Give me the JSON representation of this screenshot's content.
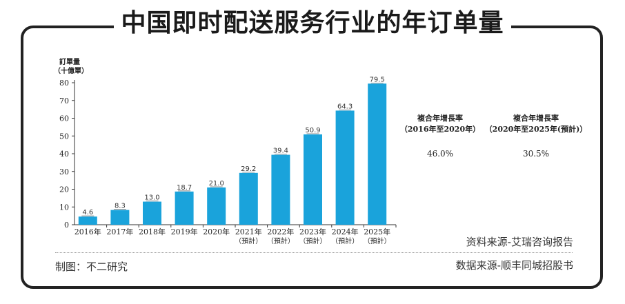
{
  "title": "中国即时配送服务行业的年订单量",
  "chart_data": {
    "type": "bar",
    "ylabel_line1": "訂單量",
    "ylabel_line2": "（十億單）",
    "ylim": [
      0,
      80
    ],
    "yticks": [
      0,
      10,
      20,
      30,
      40,
      50,
      60,
      70,
      80
    ],
    "categories": [
      {
        "year": "2016年",
        "note": ""
      },
      {
        "year": "2017年",
        "note": ""
      },
      {
        "year": "2018年",
        "note": ""
      },
      {
        "year": "2019年",
        "note": ""
      },
      {
        "year": "2020年",
        "note": ""
      },
      {
        "year": "2021年",
        "note": "（預計）"
      },
      {
        "year": "2022年",
        "note": "（預計）"
      },
      {
        "year": "2023年",
        "note": "（預計）"
      },
      {
        "year": "2024年",
        "note": "（預計）"
      },
      {
        "year": "2025年",
        "note": "（預計）"
      }
    ],
    "values": [
      4.6,
      8.3,
      13.0,
      18.7,
      21.0,
      29.2,
      39.4,
      50.9,
      64.3,
      79.5
    ],
    "value_labels": [
      "4.6",
      "8.3",
      "13.0",
      "18.7",
      "21.0",
      "29.2",
      "39.4",
      "50.9",
      "64.3",
      "79.5"
    ],
    "bar_color": "#1aa3db",
    "grid": false
  },
  "cagr": [
    {
      "title": "複合年增長率",
      "period": "（2016年至2020年）",
      "value": "46.0%"
    },
    {
      "title": "複合年增長率",
      "period": "（2020年至2025年(預計)）",
      "value": "30.5%"
    }
  ],
  "source_primary": "资料来源-艾瑞咨询报告",
  "made_by": "制图：不二研究",
  "source_secondary": "数据来源-顺丰同城招股书"
}
